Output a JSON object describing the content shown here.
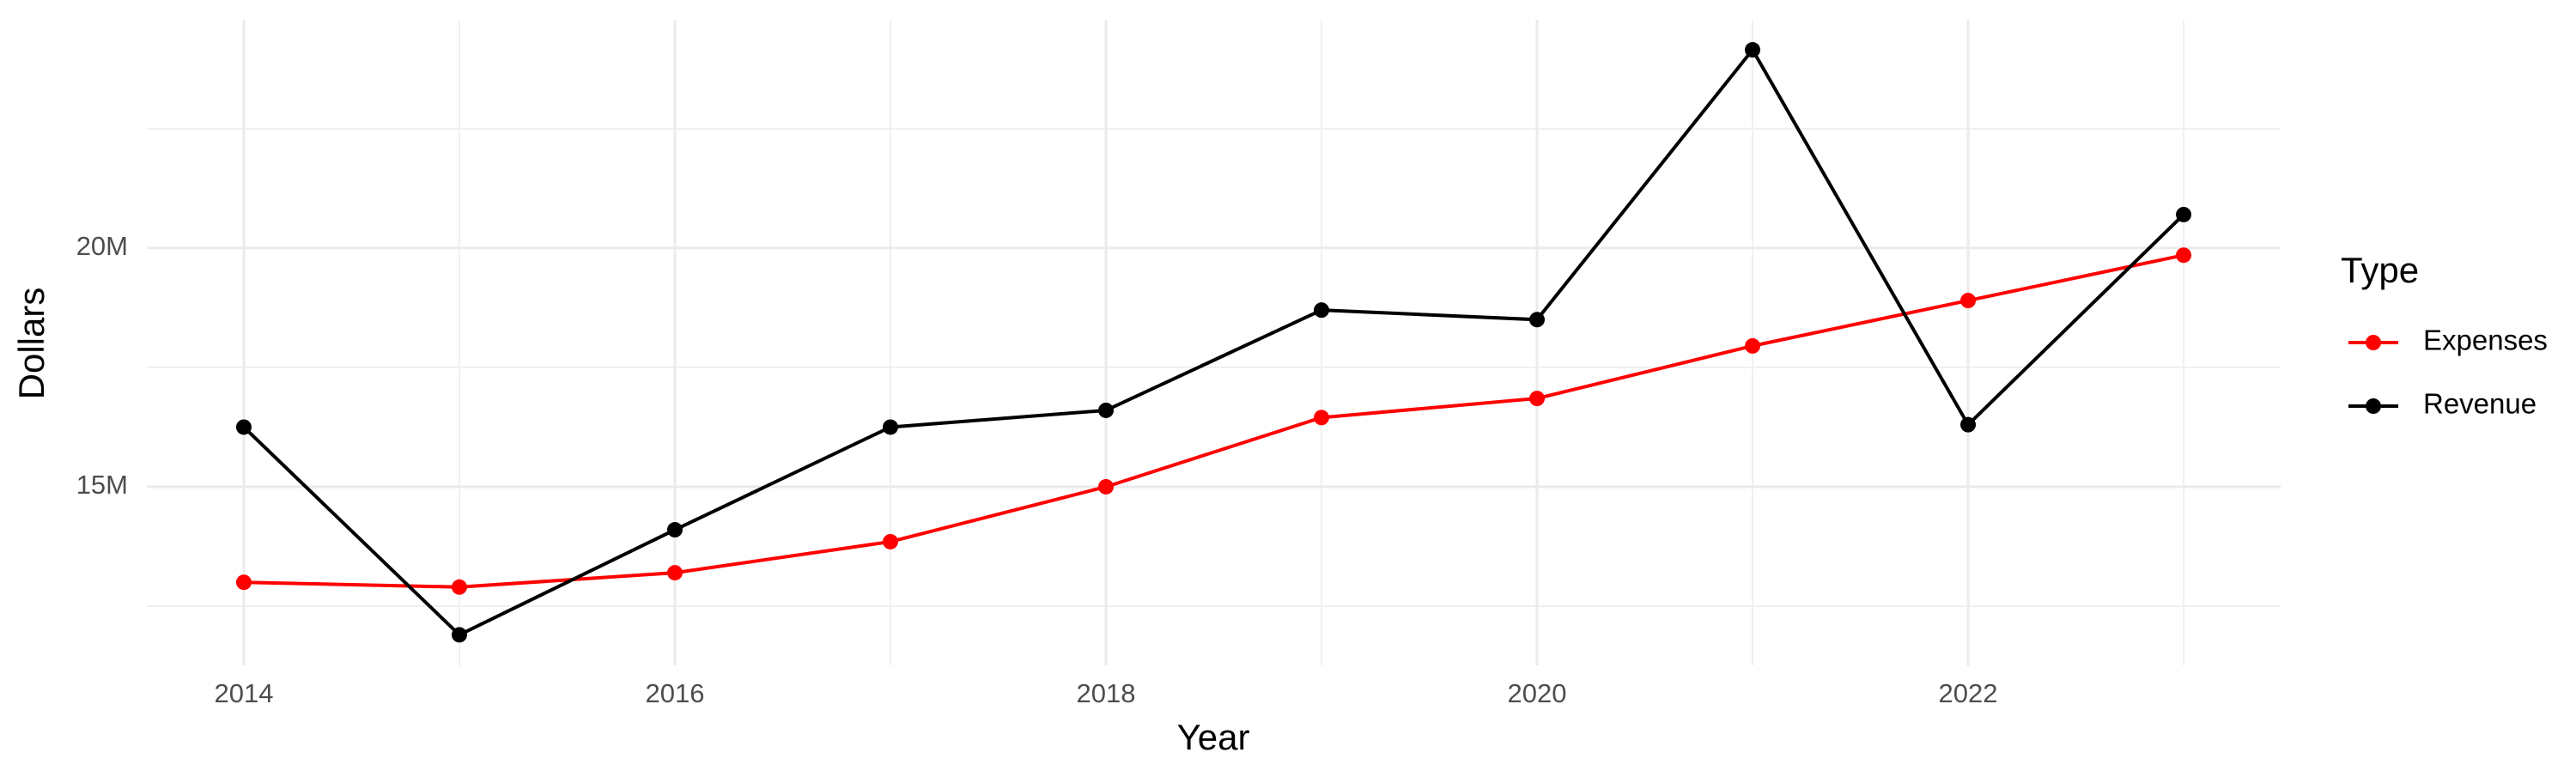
{
  "chart_data": {
    "type": "line",
    "x_label": "Year",
    "y_label": "Dollars",
    "legend_title": "Type",
    "legend_position": "right",
    "grid": true,
    "x": [
      2014,
      2015,
      2016,
      2017,
      2018,
      2019,
      2020,
      2021,
      2022,
      2023
    ],
    "series": [
      {
        "name": "Expenses",
        "color": "#ff0000",
        "values": [
          13000000,
          12900000,
          13200000,
          13850000,
          15000000,
          16450000,
          16850000,
          17950000,
          18900000,
          19850000
        ]
      },
      {
        "name": "Revenue",
        "color": "#000000",
        "values": [
          16250000,
          11900000,
          14100000,
          16250000,
          16600000,
          18700000,
          18500000,
          24150000,
          16300000,
          20700000
        ]
      }
    ],
    "xlim": [
      2013.55,
      2023.45
    ],
    "xticks": [
      2014,
      2016,
      2018,
      2020,
      2022
    ],
    "x_minor_grid": [
      2015,
      2017,
      2019,
      2021,
      2023
    ],
    "ylim": [
      11260000,
      24780000
    ],
    "yticks": [
      {
        "value": 15000000,
        "label": "15M"
      },
      {
        "value": 20000000,
        "label": "20M"
      }
    ],
    "y_minor_grid": [
      12500000,
      17500000,
      22500000
    ]
  }
}
